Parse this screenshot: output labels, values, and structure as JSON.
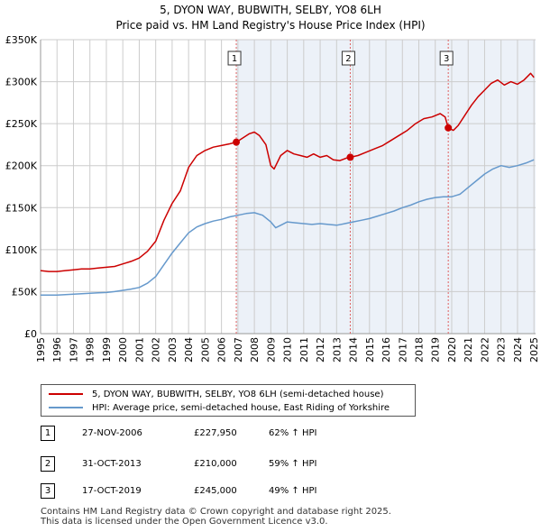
{
  "page": {
    "title_line1": "5, DYON WAY, BUBWITH, SELBY, YO8 6LH",
    "title_line2": "Price paid vs. HM Land Registry's House Price Index (HPI)"
  },
  "chart_data": {
    "type": "line",
    "xlim": [
      1995.0,
      2025.1
    ],
    "ylim": [
      0,
      350000
    ],
    "y_ticks": [
      0,
      50000,
      100000,
      150000,
      200000,
      250000,
      300000,
      350000
    ],
    "y_tick_labels": [
      "£0",
      "£50K",
      "£100K",
      "£150K",
      "£200K",
      "£250K",
      "£300K",
      "£350K"
    ],
    "x_ticks": [
      1995,
      1996,
      1997,
      1998,
      1999,
      2000,
      2001,
      2002,
      2003,
      2004,
      2005,
      2006,
      2007,
      2008,
      2009,
      2010,
      2011,
      2012,
      2013,
      2014,
      2015,
      2016,
      2017,
      2018,
      2019,
      2020,
      2021,
      2022,
      2023,
      2024,
      2025
    ],
    "x_tick_labels": [
      "1995",
      "1996",
      "1997",
      "1998",
      "1999",
      "2000",
      "2001",
      "2002",
      "2003",
      "2004",
      "2005",
      "2006",
      "2007",
      "2008",
      "2009",
      "2010",
      "2011",
      "2012",
      "2013",
      "2014",
      "2015",
      "2016",
      "2017",
      "2018",
      "2019",
      "2020",
      "2021",
      "2022",
      "2023",
      "2024",
      "2025"
    ],
    "grid": true,
    "series": [
      {
        "name": "5, DYON WAY, BUBWITH, SELBY, YO8 6LH (semi-detached house)",
        "color": "#cc0000",
        "x": [
          1995.0,
          1995.5,
          1996.0,
          1996.5,
          1997.0,
          1997.5,
          1998.0,
          1998.5,
          1999.0,
          1999.5,
          2000.0,
          2000.5,
          2001.0,
          2001.5,
          2002.0,
          2002.5,
          2003.0,
          2003.5,
          2004.0,
          2004.5,
          2005.0,
          2005.5,
          2006.0,
          2006.5,
          2006.9,
          2007.3,
          2007.7,
          2008.0,
          2008.3,
          2008.7,
          2009.0,
          2009.2,
          2009.6,
          2010.0,
          2010.4,
          2010.8,
          2011.2,
          2011.6,
          2012.0,
          2012.4,
          2012.8,
          2013.2,
          2013.6,
          2013.83,
          2014.3,
          2014.8,
          2015.3,
          2015.8,
          2016.3,
          2016.8,
          2017.3,
          2017.8,
          2018.3,
          2018.8,
          2019.3,
          2019.6,
          2019.79,
          2020.1,
          2020.4,
          2020.8,
          2021.2,
          2021.6,
          2022.0,
          2022.4,
          2022.8,
          2023.2,
          2023.6,
          2024.0,
          2024.4,
          2024.8,
          2025.0
        ],
        "values": [
          75000,
          74000,
          74000,
          75000,
          76000,
          77000,
          77000,
          78000,
          79000,
          80000,
          83000,
          86000,
          90000,
          98000,
          110000,
          135000,
          155000,
          170000,
          198000,
          212000,
          218000,
          222000,
          224000,
          226000,
          227950,
          233000,
          238000,
          240000,
          236000,
          225000,
          200000,
          196000,
          212000,
          218000,
          214000,
          212000,
          210000,
          214000,
          210000,
          212000,
          207000,
          206000,
          209000,
          210000,
          212000,
          216000,
          220000,
          224000,
          230000,
          236000,
          242000,
          250000,
          256000,
          258000,
          262000,
          258000,
          245000,
          242000,
          248000,
          260000,
          272000,
          282000,
          290000,
          298000,
          302000,
          296000,
          300000,
          297000,
          302000,
          310000,
          305000
        ]
      },
      {
        "name": "HPI: Average price, semi-detached house, East Riding of Yorkshire",
        "color": "#6699cc",
        "x": [
          1995.0,
          1995.5,
          1996.0,
          1996.5,
          1997.0,
          1997.5,
          1998.0,
          1998.5,
          1999.0,
          1999.5,
          2000.0,
          2000.5,
          2001.0,
          2001.5,
          2002.0,
          2002.5,
          2003.0,
          2003.5,
          2004.0,
          2004.5,
          2005.0,
          2005.5,
          2006.0,
          2006.5,
          2007.0,
          2007.5,
          2008.0,
          2008.5,
          2009.0,
          2009.3,
          2009.7,
          2010.0,
          2010.5,
          2011.0,
          2011.5,
          2012.0,
          2012.5,
          2013.0,
          2013.5,
          2014.0,
          2014.5,
          2015.0,
          2015.5,
          2016.0,
          2016.5,
          2017.0,
          2017.5,
          2018.0,
          2018.5,
          2019.0,
          2019.5,
          2020.0,
          2020.5,
          2021.0,
          2021.5,
          2022.0,
          2022.5,
          2023.0,
          2023.5,
          2024.0,
          2024.5,
          2025.0
        ],
        "values": [
          46000,
          46000,
          46000,
          46500,
          47000,
          47500,
          48000,
          48500,
          49000,
          50000,
          51500,
          53000,
          55000,
          60000,
          68000,
          82000,
          96000,
          108000,
          120000,
          127000,
          131000,
          134000,
          136000,
          139000,
          141000,
          143000,
          144000,
          141000,
          133000,
          126000,
          130000,
          133000,
          132000,
          131000,
          130000,
          131000,
          130000,
          129000,
          131000,
          133000,
          135000,
          137000,
          140000,
          143000,
          146000,
          150000,
          153000,
          157000,
          160000,
          162000,
          163000,
          163000,
          166000,
          174000,
          182000,
          190000,
          196000,
          200000,
          198000,
          200000,
          203000,
          207000
        ]
      }
    ],
    "sales": [
      {
        "label": "1",
        "date": "27-NOV-2006",
        "x": 2006.9,
        "price": 227950,
        "price_label": "£227,950",
        "hpi_label": "62% ↑ HPI"
      },
      {
        "label": "2",
        "date": "31-OCT-2013",
        "x": 2013.83,
        "price": 210000,
        "price_label": "£210,000",
        "hpi_label": "59% ↑ HPI"
      },
      {
        "label": "3",
        "date": "17-OCT-2019",
        "x": 2019.79,
        "price": 245000,
        "price_label": "£245,000",
        "hpi_label": "49% ↑ HPI"
      }
    ]
  },
  "legend": {
    "items": [
      {
        "label": "5, DYON WAY, BUBWITH, SELBY, YO8 6LH (semi-detached house)",
        "color": "#cc0000"
      },
      {
        "label": "HPI: Average price, semi-detached house, East Riding of Yorkshire",
        "color": "#6699cc"
      }
    ]
  },
  "footer": {
    "line1": "Contains HM Land Registry data © Crown copyright and database right 2025.",
    "line2": "This data is licensed under the Open Government Licence v3.0."
  }
}
